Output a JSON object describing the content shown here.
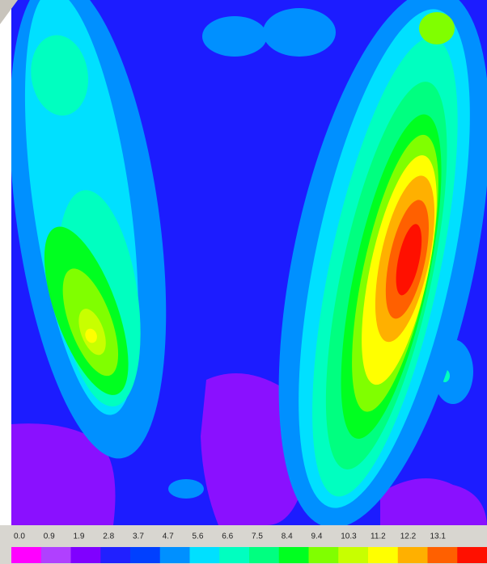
{
  "chart_data": {
    "type": "contour",
    "colorbar": {
      "ticks": [
        {
          "value": 0,
          "label": "0.0"
        },
        0.9,
        1.9,
        2.8,
        3.7,
        4.7,
        5.6,
        6.6,
        7.5,
        8.4,
        9.4,
        10.3,
        11.2,
        12.2,
        13.1
      ],
      "colors": [
        "#ff00ff",
        "#b040ff",
        "#8000ff",
        "#2020ff",
        "#0040ff",
        "#0090ff",
        "#00e0ff",
        "#00ffc0",
        "#00ff80",
        "#00ff20",
        "#80ff00",
        "#c8ff00",
        "#ffff00",
        "#ffb000",
        "#ff6000",
        "#ff1000"
      ]
    }
  }
}
